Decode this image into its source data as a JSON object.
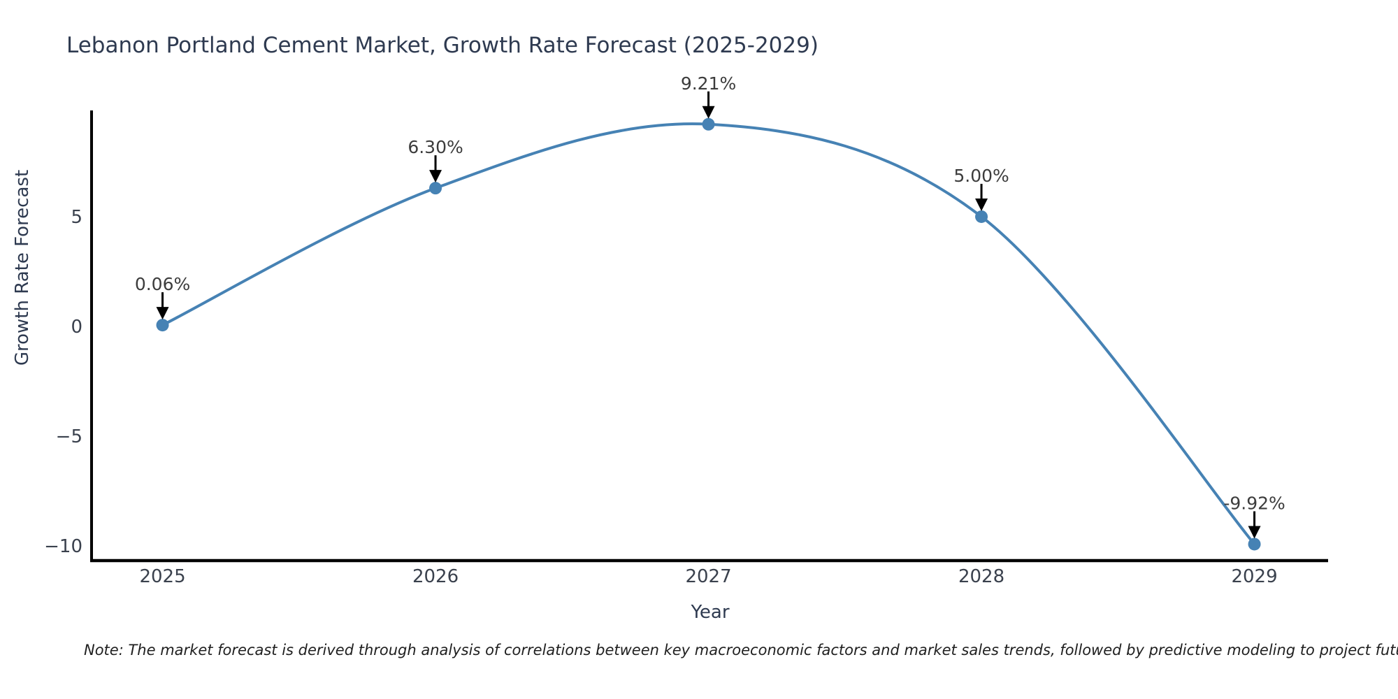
{
  "note": "Note: The market forecast is derived through analysis of correlations between key macroeconomic factors and market sales trends, followed by predictive modeling to project future sales",
  "chart_data": {
    "type": "line",
    "title": "Lebanon Portland Cement Market, Growth Rate Forecast (2025-2029)",
    "xlabel": "Year",
    "ylabel": "Growth Rate Forecast",
    "x": [
      2025,
      2026,
      2027,
      2028,
      2029
    ],
    "y": [
      0.06,
      6.3,
      9.21,
      5.0,
      -9.92
    ],
    "point_labels": [
      "0.06%",
      "6.30%",
      "9.21%",
      "5.00%",
      "-9.92%"
    ],
    "xticks": {
      "values": [
        2025,
        2026,
        2027,
        2028,
        2029
      ],
      "labels": [
        "2025",
        "2026",
        "2027",
        "2028",
        "2029"
      ]
    },
    "yticks": {
      "values": [
        5,
        0,
        -5,
        -10
      ],
      "labels": [
        "5",
        "0",
        "−5",
        "−10"
      ]
    },
    "xlim": [
      2024.74,
      2029.27
    ],
    "ylim": [
      -10.67,
      9.84
    ],
    "grid": false,
    "legend": "none",
    "smooth": true,
    "line_color": "#4682b4",
    "marker_color": "#4682b4",
    "arrow_color": "#000000",
    "spine_color": "#000000"
  }
}
